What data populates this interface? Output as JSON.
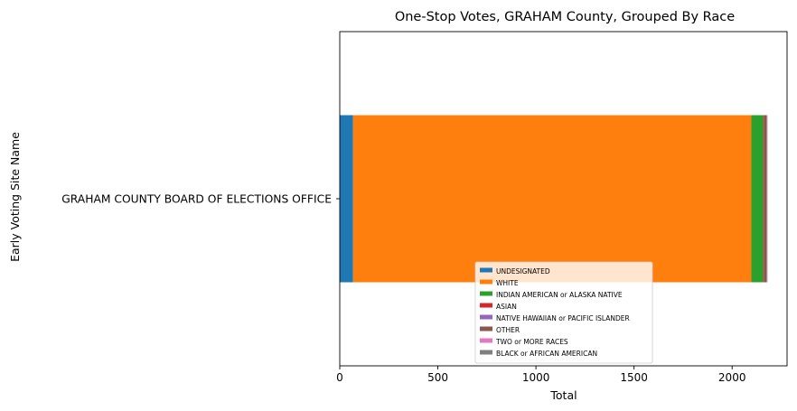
{
  "chart_data": {
    "type": "bar",
    "orientation": "horizontal",
    "stacked": true,
    "title": "One-Stop Votes, GRAHAM County, Grouped By Race",
    "xlabel": "Total",
    "ylabel": "Early Voting Site Name",
    "categories": [
      "GRAHAM COUNTY BOARD OF ELECTIONS OFFICE"
    ],
    "xlim": [
      0,
      2280
    ],
    "xticks": [
      0,
      500,
      1000,
      1500,
      2000
    ],
    "grid": false,
    "legend_position": "lower-center",
    "series": [
      {
        "name": "UNDESIGNATED",
        "values": [
          68
        ],
        "color": "#1f77b4"
      },
      {
        "name": "WHITE",
        "values": [
          2030
        ],
        "color": "#ff7f0e"
      },
      {
        "name": "INDIAN AMERICAN or ALASKA NATIVE",
        "values": [
          60
        ],
        "color": "#2ca02c"
      },
      {
        "name": "ASIAN",
        "values": [
          2
        ],
        "color": "#d62728"
      },
      {
        "name": "NATIVE HAWAIIAN or PACIFIC ISLANDER",
        "values": [
          1
        ],
        "color": "#9467bd"
      },
      {
        "name": "OTHER",
        "values": [
          15
        ],
        "color": "#8c564b"
      },
      {
        "name": "TWO or MORE RACES",
        "values": [
          2
        ],
        "color": "#e377c2"
      },
      {
        "name": "BLACK or AFRICAN AMERICAN",
        "values": [
          2
        ],
        "color": "#7f7f7f"
      }
    ]
  }
}
